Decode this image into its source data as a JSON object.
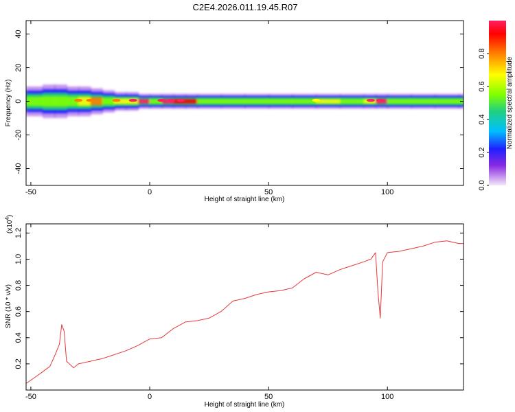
{
  "title": "C2E4.2026.011.19.45.R07",
  "chart_data": [
    {
      "type": "heatmap",
      "xlabel": "Height of straight line (km)",
      "ylabel": "Frequency (Hz)",
      "xlim": [
        -52,
        132
      ],
      "ylim": [
        -50,
        48
      ],
      "x_ticks": [
        -50,
        0,
        50,
        100
      ],
      "x_tick_labels": [
        "-50",
        "0",
        "50",
        "100"
      ],
      "y_ticks": [
        -40,
        -20,
        0,
        20,
        40
      ],
      "y_tick_labels": [
        "-40",
        "-20",
        "0",
        "20",
        "40"
      ],
      "colorbar": {
        "label": "Normalized spectral amplitude",
        "range": [
          0,
          1
        ],
        "ticks": [
          0.0,
          0.2,
          0.4,
          0.6,
          0.8
        ],
        "tick_labels": [
          "0.0",
          "0.2",
          "0.4",
          "0.6",
          "0.8"
        ],
        "colormap": [
          "#f4e8fa",
          "#8a2be2",
          "#2020ff",
          "#00c0ff",
          "#20d080",
          "#80ff00",
          "#ffff00",
          "#ff8000",
          "#ff0000",
          "#ff2060"
        ]
      },
      "band": [
        {
          "x": -50,
          "halfwidth": 4,
          "center": 0.5
        },
        {
          "x": -45,
          "halfwidth": 4.5,
          "center": 0.6
        },
        {
          "x": -40,
          "halfwidth": 4.5,
          "center": 0.55
        },
        {
          "x": -35,
          "halfwidth": 4,
          "center": 0.6
        },
        {
          "x": -30,
          "halfwidth": 4,
          "center": 0.7
        },
        {
          "x": -25,
          "halfwidth": 3.5,
          "center": 0.75
        },
        {
          "x": -20,
          "halfwidth": 3,
          "center": 0.6
        },
        {
          "x": -15,
          "halfwidth": 2.5,
          "center": 0.65
        },
        {
          "x": -10,
          "halfwidth": 2.5,
          "center": 0.7
        },
        {
          "x": -5,
          "halfwidth": 2,
          "center": 0.95
        },
        {
          "x": 0,
          "halfwidth": 2,
          "center": 0.5
        },
        {
          "x": 5,
          "halfwidth": 2,
          "center": 0.95
        },
        {
          "x": 10,
          "halfwidth": 2,
          "center": 0.9
        },
        {
          "x": 15,
          "halfwidth": 2,
          "center": 0.9
        },
        {
          "x": 20,
          "halfwidth": 2,
          "center": 0.55
        },
        {
          "x": 30,
          "halfwidth": 2,
          "center": 0.5
        },
        {
          "x": 40,
          "halfwidth": 2,
          "center": 0.55
        },
        {
          "x": 50,
          "halfwidth": 2,
          "center": 0.6
        },
        {
          "x": 60,
          "halfwidth": 2,
          "center": 0.55
        },
        {
          "x": 70,
          "halfwidth": 2,
          "center": 0.65
        },
        {
          "x": 80,
          "halfwidth": 2,
          "center": 0.6
        },
        {
          "x": 90,
          "halfwidth": 2,
          "center": 0.7
        },
        {
          "x": 95,
          "halfwidth": 2,
          "center": 0.95
        },
        {
          "x": 100,
          "halfwidth": 2,
          "center": 0.5
        },
        {
          "x": 110,
          "halfwidth": 2,
          "center": 0.5
        },
        {
          "x": 120,
          "halfwidth": 2,
          "center": 0.5
        },
        {
          "x": 130,
          "halfwidth": 2,
          "center": 0.55
        }
      ],
      "hotspots": [
        {
          "x": -30,
          "value": 0.75
        },
        {
          "x": -25,
          "value": 0.8
        },
        {
          "x": -14,
          "value": 0.75
        },
        {
          "x": -7,
          "value": 0.95
        },
        {
          "x": 5,
          "value": 0.95
        },
        {
          "x": 9,
          "value": 0.95
        },
        {
          "x": 13,
          "value": 0.95
        },
        {
          "x": 70,
          "value": 0.7
        },
        {
          "x": 93,
          "value": 0.95
        },
        {
          "x": 97,
          "value": 0.95
        }
      ]
    },
    {
      "type": "line",
      "xlabel": "Height of straight line (km)",
      "ylabel": "SNR (10 * v/v)",
      "y_multiplier": "(x10",
      "y_multiplier_exp": "4",
      "y_multiplier_close": ")",
      "xlim": [
        -52,
        132
      ],
      "ylim": [
        0.0,
        1.27
      ],
      "x_ticks": [
        -50,
        0,
        50,
        100
      ],
      "x_tick_labels": [
        "-50",
        "0",
        "50",
        "100"
      ],
      "y_ticks": [
        0.2,
        0.4,
        0.6,
        0.8,
        1.0,
        1.2
      ],
      "y_tick_labels": [
        "0.2",
        "0.4",
        "0.6",
        "0.8",
        "1.0",
        "1.2"
      ],
      "color": "#e8373b",
      "x": [
        -52,
        -48,
        -45,
        -42,
        -40,
        -38,
        -37,
        -36,
        -35,
        -32,
        -30,
        -25,
        -20,
        -15,
        -10,
        -5,
        0,
        5,
        10,
        15,
        20,
        25,
        30,
        35,
        40,
        45,
        50,
        55,
        60,
        65,
        70,
        75,
        80,
        85,
        90,
        93,
        95,
        96,
        97,
        98,
        100,
        105,
        110,
        115,
        120,
        125,
        130,
        132
      ],
      "y": [
        0.05,
        0.1,
        0.14,
        0.18,
        0.26,
        0.35,
        0.5,
        0.45,
        0.22,
        0.17,
        0.2,
        0.22,
        0.24,
        0.27,
        0.3,
        0.34,
        0.39,
        0.4,
        0.47,
        0.52,
        0.53,
        0.55,
        0.6,
        0.68,
        0.7,
        0.73,
        0.75,
        0.76,
        0.78,
        0.85,
        0.9,
        0.88,
        0.92,
        0.95,
        0.98,
        1.0,
        1.05,
        0.75,
        0.55,
        0.98,
        1.05,
        1.06,
        1.08,
        1.1,
        1.13,
        1.14,
        1.12,
        1.12
      ]
    }
  ]
}
